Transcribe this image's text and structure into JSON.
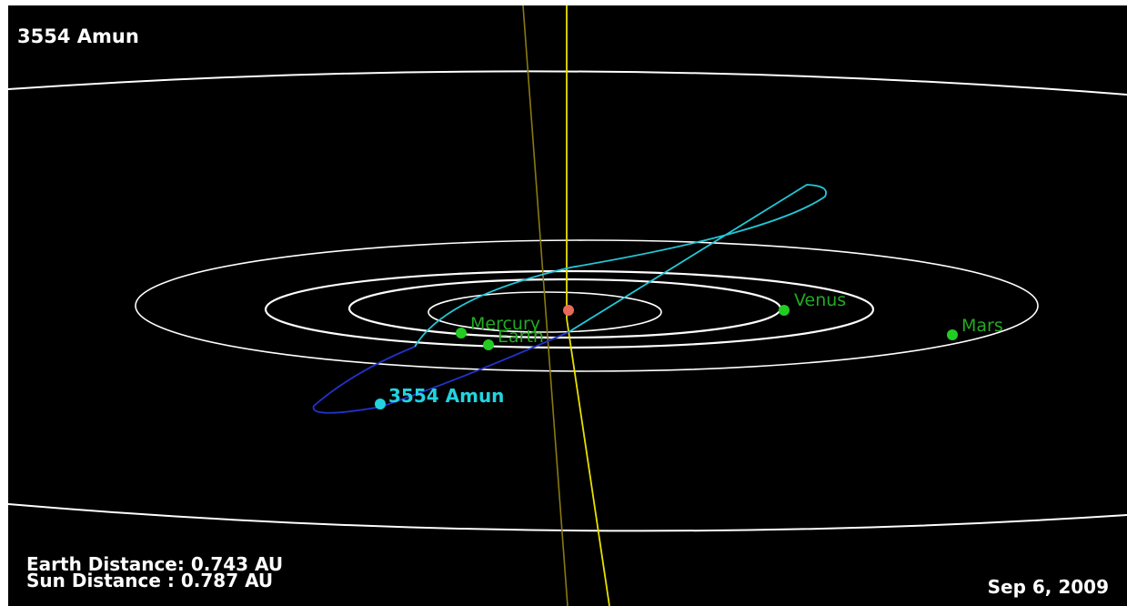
{
  "title": "3554 Amun",
  "earth_distance": "Earth Distance: 0.743 AU",
  "sun_distance": "Sun Distance  : 0.787 AU",
  "date": "Sep 6, 2009",
  "colors": {
    "background": "#000000",
    "planet_orbit": "#ffffff",
    "planet": "#22cc22",
    "planet_label": "#22aa22",
    "asteroid": "#22d3e0",
    "asteroid_orbit_above": "#22c8d8",
    "asteroid_orbit_below": "#2233cc",
    "sun": "#e86a5a",
    "ecliptic_pole": "#e8e000",
    "asteroid_axis": "#8a7a10"
  },
  "bodies": [
    {
      "name": "Mercury",
      "kind": "planet"
    },
    {
      "name": "Venus",
      "kind": "planet"
    },
    {
      "name": "Earth",
      "kind": "planet"
    },
    {
      "name": "Mars",
      "kind": "planet"
    },
    {
      "name": "3554 Amun",
      "kind": "asteroid"
    }
  ]
}
